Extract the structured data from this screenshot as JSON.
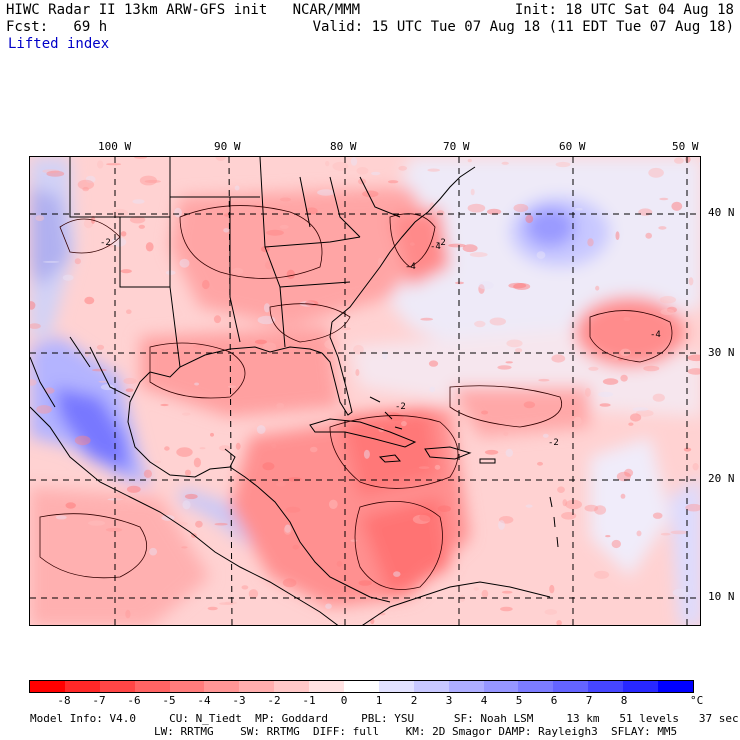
{
  "header": {
    "line1_left": "HIWC Radar II 13km ARW-GFS init   NCAR/MMM",
    "line1_right": "Init: 18 UTC Sat 04 Aug 18",
    "line2_left": "Fcst:   69 h",
    "line2_right": "Valid: 15 UTC Tue 07 Aug 18 (11 EDT Tue 07 Aug 18)",
    "field_name": "Lifted index"
  },
  "map": {
    "lon_labels": [
      "100 W",
      "90 W",
      "80 W",
      "70 W",
      "60 W",
      "50 W"
    ],
    "lat_labels": [
      "40 N",
      "30 N",
      "20 N",
      "10 N"
    ],
    "contour_labels": [
      "-2",
      "-4",
      "-2",
      "-4",
      "-2",
      "-2",
      "-4"
    ],
    "colors": {
      "strong_positive": "#dcdcff",
      "background_unstable": "#ffc8c8",
      "moderate_unstable": "#ff8c8c",
      "strong_unstable": "#ff6464",
      "stable_blue": "#8c8cff",
      "very_stable_blue": "#5050ff",
      "neutral": "#f5f0f5"
    }
  },
  "colorbar": {
    "ticks": [
      "-8",
      "-7",
      "-6",
      "-5",
      "-4",
      "-3",
      "-2",
      "-1",
      "0",
      "1",
      "2",
      "3",
      "4",
      "5",
      "6",
      "7",
      "8"
    ],
    "unit": "°C",
    "colors": [
      "#ff0000",
      "#ff2828",
      "#ff4646",
      "#ff6464",
      "#ff7c7c",
      "#ff9696",
      "#ffaeae",
      "#ffc8c8",
      "#ffe2e2",
      "#ffffff",
      "#e2e2ff",
      "#c8c8ff",
      "#aeaeff",
      "#9696ff",
      "#7c7cff",
      "#6464ff",
      "#4646ff",
      "#2828ff",
      "#0000ff"
    ]
  },
  "footer": {
    "line1": "Model Info: V4.0     CU: N_Tiedt  MP: Goddard     PBL: YSU      SF: Noah LSM     13 km   51 levels   37 sec",
    "line2": "LW: RRTMG    SW: RRTMG  DIFF: full    KM: 2D Smagor DAMP: Rayleigh3  SFLAY: MM5"
  }
}
